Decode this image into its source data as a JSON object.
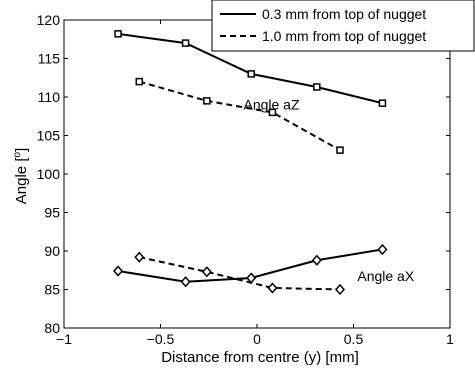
{
  "chart_data": {
    "type": "line",
    "xlabel": "Distance from centre (y) [mm]",
    "ylabel_main": "Angle [",
    "ylabel_sup": "o",
    "ylabel_end": "]",
    "xlim": [
      -1,
      1
    ],
    "ylim": [
      80,
      120
    ],
    "xticks": [
      -1,
      -0.5,
      0,
      0.5,
      1
    ],
    "xtick_labels": [
      "−1",
      "−0.5",
      "0",
      "0.5",
      "1"
    ],
    "yticks": [
      80,
      85,
      90,
      95,
      100,
      105,
      110,
      115,
      120
    ],
    "ytick_labels": [
      "80",
      "85",
      "90",
      "95",
      "100",
      "105",
      "110",
      "115",
      "120"
    ],
    "grid": false,
    "legend_position": "top-right",
    "annotations": [
      {
        "text": "Angle aZ",
        "x": -0.07,
        "y": 108.4
      },
      {
        "text": "Angle aX",
        "x": 0.52,
        "y": 86.1
      }
    ],
    "series": [
      {
        "name": "0.3 mm from top of nugget",
        "group": "aZ",
        "style": "solid",
        "marker": "square",
        "x": [
          -0.72,
          -0.37,
          -0.03,
          0.31,
          0.65
        ],
        "y": [
          118.2,
          117.0,
          113.0,
          111.3,
          109.2
        ]
      },
      {
        "name": "1.0 mm from top of nugget",
        "group": "aZ",
        "style": "dashed",
        "marker": "square",
        "x": [
          -0.61,
          -0.26,
          0.08,
          0.43
        ],
        "y": [
          112.0,
          109.5,
          108.0,
          103.1
        ]
      },
      {
        "name": "0.3 mm from top of nugget",
        "group": "aX",
        "style": "solid",
        "marker": "diamond",
        "x": [
          -0.72,
          -0.37,
          -0.03,
          0.31,
          0.65
        ],
        "y": [
          87.4,
          86.0,
          86.5,
          88.8,
          90.2
        ]
      },
      {
        "name": "1.0 mm from top of nugget",
        "group": "aX",
        "style": "dashed",
        "marker": "diamond",
        "x": [
          -0.61,
          -0.26,
          0.08,
          0.43
        ],
        "y": [
          89.2,
          87.3,
          85.2,
          85.0
        ]
      }
    ],
    "legend": [
      {
        "label": "0.3 mm from top of nugget",
        "style": "solid"
      },
      {
        "label": "1.0 mm from top of nugget",
        "style": "dashed"
      }
    ]
  }
}
